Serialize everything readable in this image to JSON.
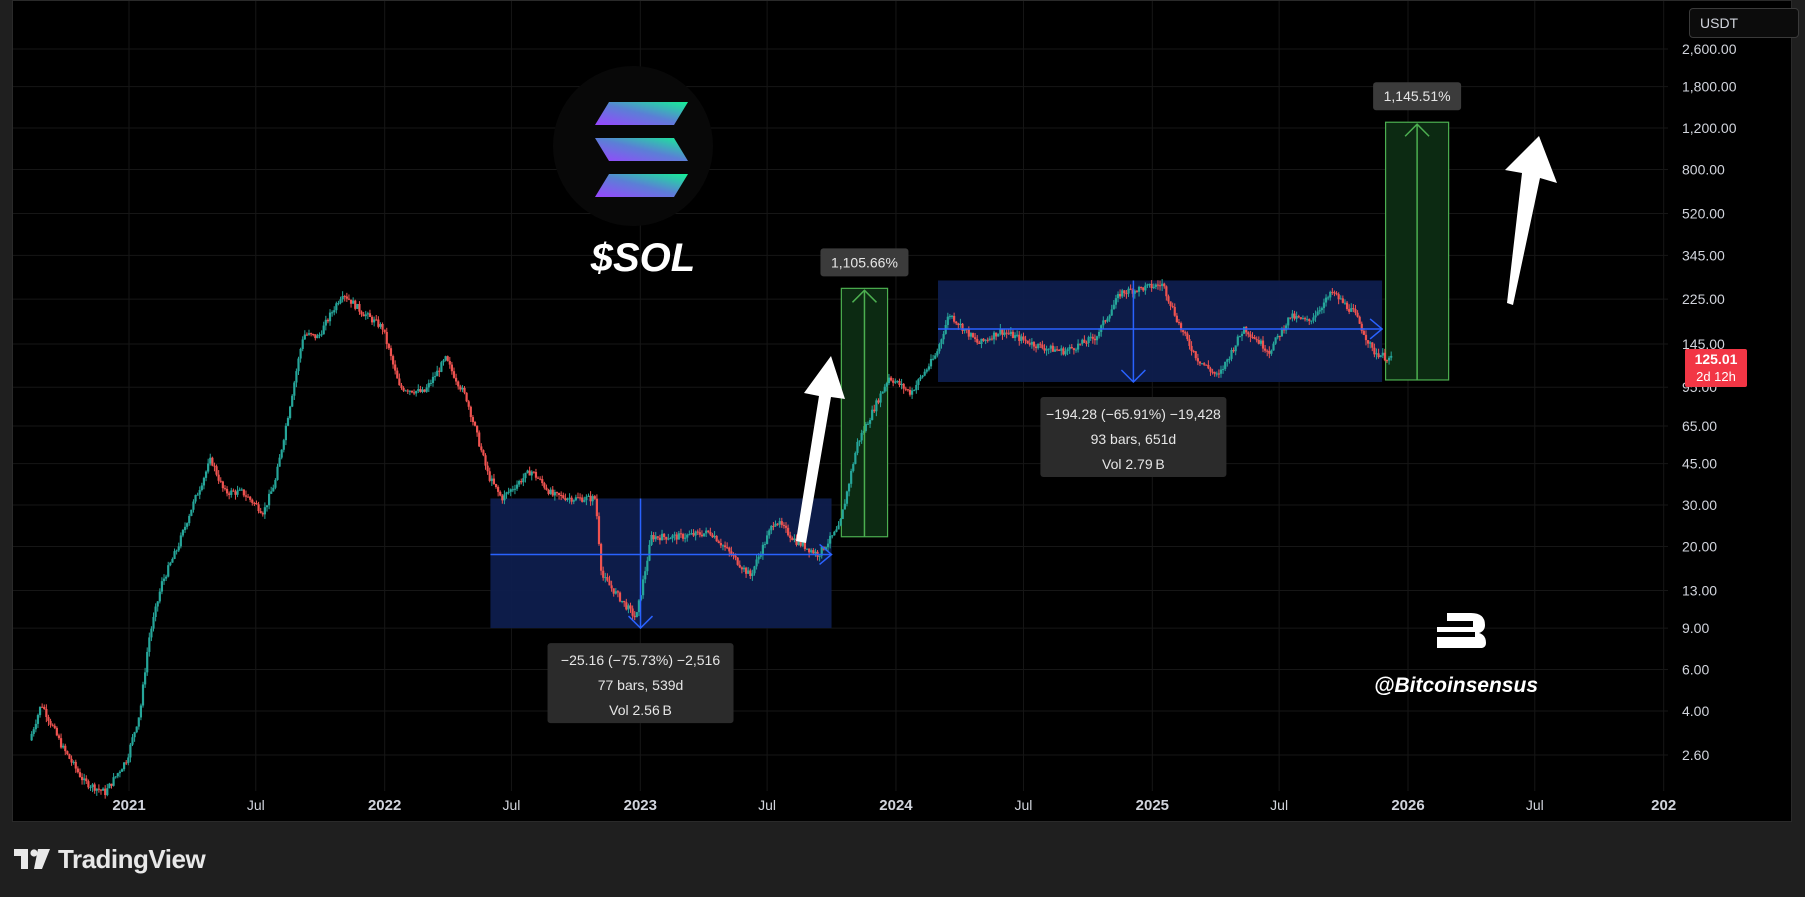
{
  "chart_data": {
    "type": "candlestick",
    "symbol_label": "$SOL",
    "currency": "USDT",
    "scale": "log",
    "grid": true,
    "x_ticks": [
      "2021",
      "Jul",
      "2022",
      "Jul",
      "2023",
      "Jul",
      "2024",
      "Jul",
      "2025",
      "Jul",
      "2026",
      "Jul",
      "202"
    ],
    "y_ticks": [
      "2,600.00",
      "1,800.00",
      "1,200.00",
      "800.00",
      "520.00",
      "345.00",
      "225.00",
      "145.00",
      "95.00",
      "65.00",
      "45.00",
      "30.00",
      "20.00",
      "13.00",
      "9.00",
      "6.00",
      "4.00",
      "2.60"
    ],
    "last_price": "125.01",
    "countdown": "2d 12h",
    "price_path": [
      [
        "2020-08-15",
        3.0
      ],
      [
        "2020-09-01",
        4.3
      ],
      [
        "2020-10-01",
        2.8
      ],
      [
        "2020-11-01",
        2.0
      ],
      [
        "2020-12-01",
        1.8
      ],
      [
        "2021-01-01",
        2.5
      ],
      [
        "2021-01-20",
        4.0
      ],
      [
        "2021-02-01",
        8.0
      ],
      [
        "2021-02-20",
        14.0
      ],
      [
        "2021-03-15",
        20.0
      ],
      [
        "2021-04-01",
        28.0
      ],
      [
        "2021-05-01",
        47.0
      ],
      [
        "2021-05-20",
        34.0
      ],
      [
        "2021-06-15",
        34.0
      ],
      [
        "2021-07-15",
        28.0
      ],
      [
        "2021-08-01",
        38.0
      ],
      [
        "2021-08-20",
        75.0
      ],
      [
        "2021-09-10",
        160.0
      ],
      [
        "2021-10-01",
        155.0
      ],
      [
        "2021-11-05",
        240.0
      ],
      [
        "2021-12-01",
        200.0
      ],
      [
        "2022-01-01",
        170.0
      ],
      [
        "2022-01-25",
        95.0
      ],
      [
        "2022-03-01",
        90.0
      ],
      [
        "2022-04-01",
        125.0
      ],
      [
        "2022-05-01",
        85.0
      ],
      [
        "2022-06-01",
        40.0
      ],
      [
        "2022-06-20",
        32.0
      ],
      [
        "2022-08-01",
        42.0
      ],
      [
        "2022-09-01",
        33.0
      ],
      [
        "2022-10-01",
        32.0
      ],
      [
        "2022-11-01",
        32.0
      ],
      [
        "2022-11-10",
        15.0
      ],
      [
        "2022-12-29",
        9.9
      ],
      [
        "2023-01-20",
        22.0
      ],
      [
        "2023-03-01",
        22.0
      ],
      [
        "2023-04-15",
        23.0
      ],
      [
        "2023-06-10",
        15.0
      ],
      [
        "2023-07-15",
        26.0
      ],
      [
        "2023-08-15",
        21.0
      ],
      [
        "2023-09-15",
        18.5
      ],
      [
        "2023-10-15",
        24.0
      ],
      [
        "2023-11-10",
        55.0
      ],
      [
        "2023-12-25",
        105.0
      ],
      [
        "2024-01-25",
        90.0
      ],
      [
        "2024-03-01",
        130.0
      ],
      [
        "2024-03-20",
        195.0
      ],
      [
        "2024-05-01",
        145.0
      ],
      [
        "2024-06-01",
        165.0
      ],
      [
        "2024-08-01",
        140.0
      ],
      [
        "2024-09-01",
        135.0
      ],
      [
        "2024-10-15",
        155.0
      ],
      [
        "2024-11-20",
        240.0
      ],
      [
        "2025-01-19",
        260.0
      ],
      [
        "2025-02-15",
        165.0
      ],
      [
        "2025-03-10",
        125.0
      ],
      [
        "2025-04-08",
        105.0
      ],
      [
        "2025-05-15",
        170.0
      ],
      [
        "2025-06-20",
        135.0
      ],
      [
        "2025-07-20",
        190.0
      ],
      [
        "2025-08-15",
        180.0
      ],
      [
        "2025-09-18",
        240.0
      ],
      [
        "2025-10-20",
        195.0
      ],
      [
        "2025-11-15",
        135.0
      ],
      [
        "2025-12-10",
        125.0
      ]
    ],
    "ranges": [
      {
        "start": "2022-06-01",
        "end": "2023-10-01",
        "top": 32.0,
        "bottom": 9.0,
        "arrow_from": 18.5,
        "arrow_to": 9.0,
        "line1": "−25.16 (−75.73%) −2,516",
        "line2": "77 bars, 539d",
        "line3": "Vol 2.56 B"
      },
      {
        "start": "2024-03-01",
        "end": "2025-11-25",
        "top": 270.0,
        "bottom": 100.0,
        "arrow_from": 168.0,
        "arrow_to": 100.0,
        "line1": "−194.28 (−65.91%) −19,428",
        "line2": "93 bars, 651d",
        "line3": "Vol 2.79 B"
      }
    ],
    "projections": [
      {
        "start": "2023-10-15",
        "end": "2023-12-20",
        "bottom": 22.0,
        "top": 250.0,
        "label": "1,105.66%"
      },
      {
        "start": "2025-11-30",
        "end": "2026-02-28",
        "bottom": 102.0,
        "top": 1270.0,
        "label": "1,145.51%"
      }
    ],
    "annotations": {
      "handle": "@Bitcoinsensus"
    }
  },
  "brand": {
    "name": "TradingView"
  },
  "colors": {
    "up": "#26a69a",
    "down": "#ef5350",
    "range_fill": "#0e1d4d",
    "range_line": "#2962ff",
    "proj_fill": "#0c2a12",
    "proj_line": "#4caf50",
    "price_tag": "#f23645"
  }
}
